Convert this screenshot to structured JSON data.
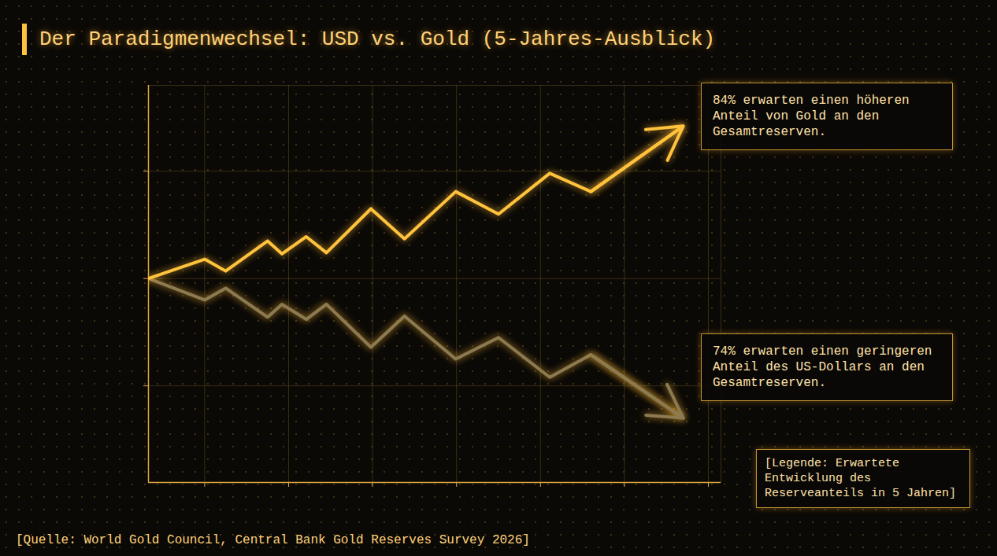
{
  "chart_data": {
    "type": "line",
    "title": "Der Paradigmenwechsel: USD vs. Gold (5-Jahres-Ausblick)",
    "source": "[Quelle: World Gold Council, Central Bank Gold Reserves Survey 2026]",
    "note": "[Legende: Erwartete Entwicklung des Reserveanteils in 5 Jahren]",
    "x": [
      0.33,
      1.0,
      1.25,
      1.75,
      1.92,
      2.21,
      2.45,
      2.98,
      3.38,
      3.99,
      4.5,
      5.11,
      5.6,
      6.7
    ],
    "series": [
      {
        "annotation": "84% erwarten einen höheren Anteil von Gold an den Gesamtreserven.",
        "color": "#ffc23d",
        "marker": "arrow",
        "values": [
          0,
          0.18,
          0.07,
          0.35,
          0.23,
          0.39,
          0.24,
          0.65,
          0.37,
          0.81,
          0.6,
          0.98,
          0.81,
          1.42
        ]
      },
      {
        "annotation": "74% erwarten einen geringeren Anteil des US-Dollars an den Gesamtreserven.",
        "color": "#8c7a52",
        "marker": "arrow",
        "values": [
          0,
          -0.2,
          -0.09,
          -0.36,
          -0.24,
          -0.38,
          -0.24,
          -0.64,
          -0.35,
          -0.75,
          -0.55,
          -0.92,
          -0.71,
          -1.3
        ]
      }
    ],
    "xlim": [
      0.33,
      7.15
    ],
    "xticks": [
      1,
      2,
      3,
      4,
      5,
      6,
      7
    ],
    "ylim": [
      -1.9,
      1.8
    ],
    "yticks": [
      -1,
      0,
      1
    ],
    "grid": true,
    "tick_labels": false
  }
}
